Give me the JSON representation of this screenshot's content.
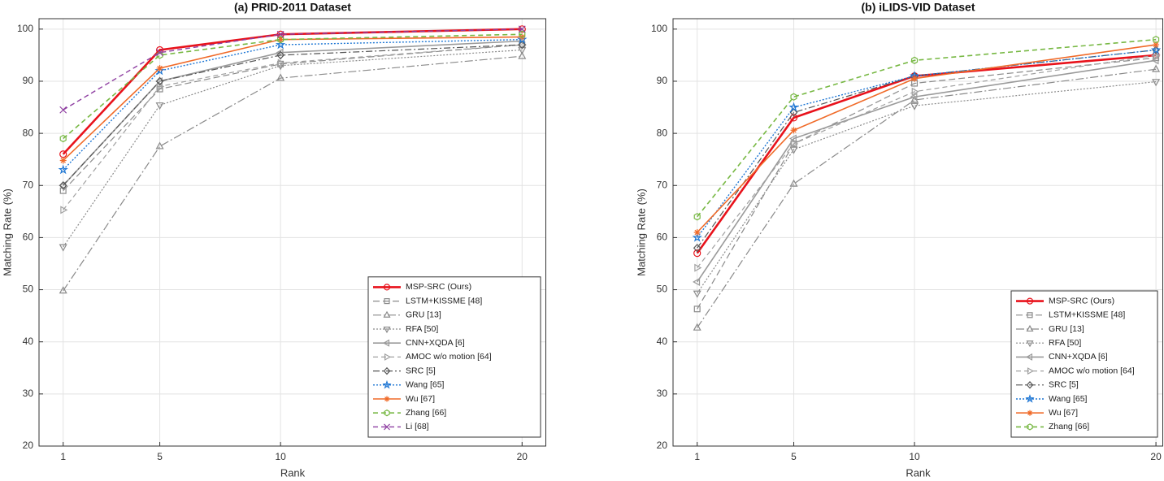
{
  "chart_data": [
    {
      "type": "line",
      "title": "(a) PRID-2011 Dataset",
      "xlabel": "Rank",
      "ylabel": "Matching Rate (%)",
      "x": [
        1,
        5,
        10,
        20
      ],
      "xlim": [
        0,
        21
      ],
      "xticks": [
        1,
        5,
        10,
        20
      ],
      "ylim": [
        20,
        102
      ],
      "yticks": [
        20,
        30,
        40,
        50,
        60,
        70,
        80,
        90,
        100
      ],
      "grid": true,
      "legend": "lower right",
      "series": [
        {
          "name": "MSP-SRC (Ours)",
          "color": "#e8121b",
          "dash": "none",
          "marker": "circle",
          "width": 2.6,
          "values": [
            76,
            96,
            99,
            100
          ]
        },
        {
          "name": "LSTM+KISSME [48]",
          "color": "#8a8a8a",
          "dash": "8,4",
          "marker": "square",
          "width": 1.2,
          "values": [
            69,
            88.5,
            93.3,
            97
          ]
        },
        {
          "name": "GRU [13]",
          "color": "#8a8a8a",
          "dash": "10,3,2,3",
          "marker": "triangle-up",
          "width": 1.2,
          "values": [
            49.8,
            77.5,
            90.6,
            94.8
          ]
        },
        {
          "name": "RFA [50]",
          "color": "#8a8a8a",
          "dash": "2,2",
          "marker": "triangle-down",
          "width": 1.2,
          "values": [
            58.2,
            85.4,
            93,
            96
          ]
        },
        {
          "name": "CNN+XQDA [6]",
          "color": "#9a9a9a",
          "dash": "none",
          "marker": "triangle-left",
          "width": 1.6,
          "values": [
            70,
            90,
            95.5,
            97.7
          ]
        },
        {
          "name": "AMOC w/o motion [64]",
          "color": "#a0a0a0",
          "dash": "6,4",
          "marker": "triangle-right",
          "width": 1.2,
          "values": [
            65.3,
            89,
            93.5,
            97
          ]
        },
        {
          "name": "SRC [5]",
          "color": "#555555",
          "dash": "8,3,2,3",
          "marker": "diamond",
          "width": 1.2,
          "values": [
            70,
            90,
            95,
            97
          ]
        },
        {
          "name": "Wang [65]",
          "color": "#1f77d4",
          "dash": "2,2",
          "marker": "star",
          "width": 1.4,
          "values": [
            73,
            92,
            97,
            98
          ]
        },
        {
          "name": "Wu [67]",
          "color": "#f06a28",
          "dash": "none",
          "marker": "asterisk",
          "width": 1.6,
          "values": [
            74.8,
            92.5,
            98,
            98.5
          ]
        },
        {
          "name": "Zhang [66]",
          "color": "#77b843",
          "dash": "6,4",
          "marker": "hexagon",
          "width": 1.6,
          "values": [
            79,
            95,
            98,
            99
          ]
        },
        {
          "name": "Li [68]",
          "color": "#8e3ea1",
          "dash": "6,4",
          "marker": "x",
          "width": 1.4,
          "values": [
            84.5,
            95.5,
            99,
            100
          ]
        }
      ]
    },
    {
      "type": "line",
      "title": "(b) iLIDS-VID Dataset",
      "xlabel": "Rank",
      "ylabel": "Matching Rate (%)",
      "x": [
        1,
        5,
        10,
        20
      ],
      "xlim": [
        0,
        20.3
      ],
      "xticks": [
        1,
        5,
        10,
        20
      ],
      "ylim": [
        20,
        102
      ],
      "yticks": [
        20,
        30,
        40,
        50,
        60,
        70,
        80,
        90,
        100
      ],
      "grid": true,
      "legend": "lower right",
      "series": [
        {
          "name": "MSP-SRC (Ours)",
          "color": "#e8121b",
          "dash": "none",
          "marker": "circle",
          "width": 2.6,
          "values": [
            57,
            83,
            91,
            95
          ]
        },
        {
          "name": "LSTM+KISSME [48]",
          "color": "#8a8a8a",
          "dash": "8,4",
          "marker": "square",
          "width": 1.2,
          "values": [
            46.3,
            78,
            89.6,
            94.5
          ]
        },
        {
          "name": "GRU [13]",
          "color": "#8a8a8a",
          "dash": "10,3,2,3",
          "marker": "triangle-up",
          "width": 1.2,
          "values": [
            42.7,
            70.3,
            86.4,
            92.3
          ]
        },
        {
          "name": "RFA [50]",
          "color": "#8a8a8a",
          "dash": "2,2",
          "marker": "triangle-down",
          "width": 1.2,
          "values": [
            49.3,
            76.9,
            85.3,
            89.9
          ]
        },
        {
          "name": "CNN+XQDA [6]",
          "color": "#9a9a9a",
          "dash": "none",
          "marker": "triangle-left",
          "width": 1.6,
          "values": [
            51.5,
            79,
            87,
            94
          ]
        },
        {
          "name": "AMOC w/o motion [64]",
          "color": "#a0a0a0",
          "dash": "6,4",
          "marker": "triangle-right",
          "width": 1.2,
          "values": [
            54.2,
            78,
            88,
            95
          ]
        },
        {
          "name": "SRC [5]",
          "color": "#555555",
          "dash": "8,3,2,3",
          "marker": "diamond",
          "width": 1.2,
          "values": [
            58,
            84,
            91,
            96
          ]
        },
        {
          "name": "Wang [65]",
          "color": "#1f77d4",
          "dash": "2,2",
          "marker": "star",
          "width": 1.4,
          "values": [
            60,
            85,
            91,
            96
          ]
        },
        {
          "name": "Wu [67]",
          "color": "#f06a28",
          "dash": "none",
          "marker": "asterisk",
          "width": 1.6,
          "values": [
            61,
            80.6,
            90.5,
            97
          ]
        },
        {
          "name": "Zhang [66]",
          "color": "#77b843",
          "dash": "6,4",
          "marker": "hexagon",
          "width": 1.6,
          "values": [
            64,
            87,
            94,
            98
          ]
        }
      ]
    }
  ]
}
